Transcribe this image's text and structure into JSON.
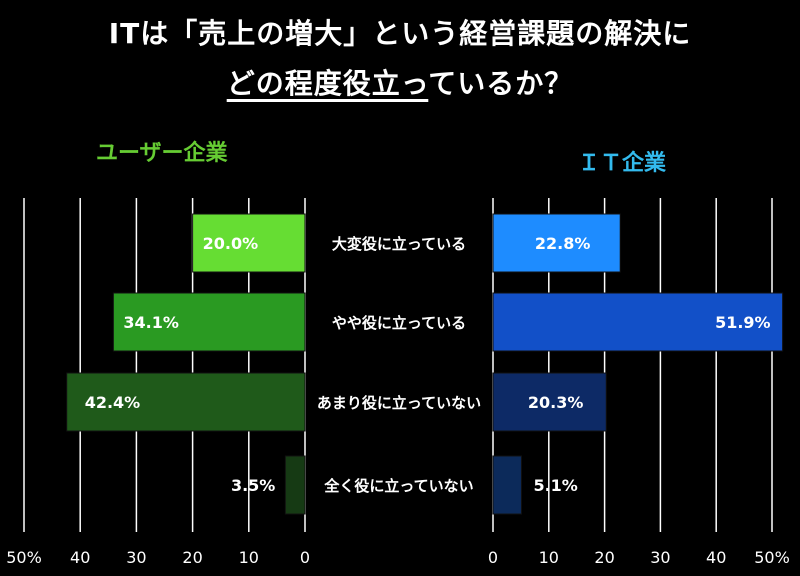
{
  "title_line1": "ITは「売上の増大」という経営課題の解決に",
  "title_line2_underlined": "どの程度役立っ",
  "title_line2_rest": "ているか？",
  "chart_data": {
    "type": "bar",
    "orientation": "horizontal-butterfly",
    "categories": [
      "大変役に立っている",
      "やや役に立っている",
      "あまり役に立っていない",
      "全く役に立っていない"
    ],
    "series": [
      {
        "name": "ユーザー企業",
        "values": [
          20.0,
          34.1,
          42.4,
          3.5
        ],
        "labels": [
          "20.0%",
          "34.1%",
          "42.4%",
          "3.5%"
        ],
        "colors": [
          "#66dd33",
          "#2a9a22",
          "#1f5a1a",
          "#163a14"
        ]
      },
      {
        "name": "ＩＴ企業",
        "values": [
          22.8,
          51.9,
          20.3,
          5.1
        ],
        "labels": [
          "22.8%",
          "51.9%",
          "20.3%",
          "5.1%"
        ],
        "colors": [
          "#1e8cff",
          "#1250c8",
          "#0d2a66",
          "#0c2a5a"
        ]
      }
    ],
    "left_ticks": [
      "50%",
      "40",
      "30",
      "20",
      "10",
      "0"
    ],
    "right_ticks": [
      "0",
      "10",
      "20",
      "30",
      "40",
      "50%"
    ],
    "xlim": [
      0,
      50
    ],
    "grid": true
  }
}
